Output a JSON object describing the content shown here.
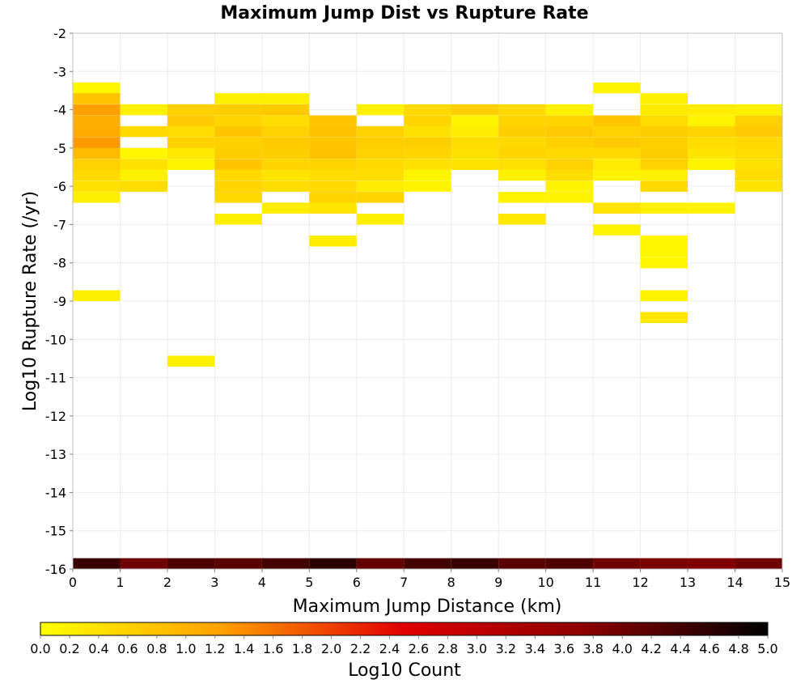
{
  "chart_data": {
    "type": "heatmap",
    "title": "Maximum Jump Dist vs Rupture Rate",
    "xlabel": "Maximum Jump Distance (km)",
    "ylabel": "Log10 Rupture Rate (/yr)",
    "xlim": [
      0,
      15
    ],
    "ylim": [
      -16,
      -2
    ],
    "x_ticks": [
      "0",
      "1",
      "2",
      "3",
      "4",
      "5",
      "6",
      "7",
      "8",
      "9",
      "10",
      "11",
      "12",
      "13",
      "14",
      "15"
    ],
    "y_ticks": [
      "-2",
      "-3",
      "-4",
      "-5",
      "-6",
      "-7",
      "-8",
      "-9",
      "-10",
      "-11",
      "-12",
      "-13",
      "-14",
      "-15",
      "-16"
    ],
    "x_bin_width": 1,
    "y_bin_height": 0.286,
    "grid": true,
    "colorbar": {
      "label": "Log10 Count",
      "range": [
        0,
        5
      ],
      "ticks": [
        "0.0",
        "0.2",
        "0.4",
        "0.6",
        "0.8",
        "1.0",
        "1.2",
        "1.4",
        "1.6",
        "1.8",
        "2.0",
        "2.2",
        "2.4",
        "2.6",
        "2.8",
        "3.0",
        "3.2",
        "3.4",
        "3.6",
        "3.8",
        "4.0",
        "4.2",
        "4.4",
        "4.6",
        "4.8",
        "5.0"
      ],
      "colors": [
        "#ffff00",
        "#ff8c00",
        "#e00000",
        "#8b0000",
        "#000000"
      ]
    },
    "cells": [
      {
        "x": 0.5,
        "y": -3.43,
        "v": 0.1
      },
      {
        "x": 0.5,
        "y": -3.71,
        "v": 0.75
      },
      {
        "x": 0.5,
        "y": -4.0,
        "v": 1.25
      },
      {
        "x": 0.5,
        "y": -4.29,
        "v": 1.05
      },
      {
        "x": 0.5,
        "y": -4.57,
        "v": 1.1
      },
      {
        "x": 0.5,
        "y": -4.86,
        "v": 1.3
      },
      {
        "x": 0.5,
        "y": -5.14,
        "v": 0.9
      },
      {
        "x": 0.5,
        "y": -5.43,
        "v": 0.6
      },
      {
        "x": 0.5,
        "y": -5.71,
        "v": 0.5
      },
      {
        "x": 0.5,
        "y": -6.0,
        "v": 0.4
      },
      {
        "x": 0.5,
        "y": -6.29,
        "v": 0.2
      },
      {
        "x": 0.5,
        "y": -8.86,
        "v": 0.2
      },
      {
        "x": 1.5,
        "y": -4.0,
        "v": 0.2
      },
      {
        "x": 1.5,
        "y": -4.57,
        "v": 0.5
      },
      {
        "x": 1.5,
        "y": -5.14,
        "v": 0.1
      },
      {
        "x": 1.5,
        "y": -5.43,
        "v": 0.4
      },
      {
        "x": 1.5,
        "y": -5.71,
        "v": 0.2
      },
      {
        "x": 1.5,
        "y": -6.0,
        "v": 0.45
      },
      {
        "x": 2.5,
        "y": -4.0,
        "v": 0.6
      },
      {
        "x": 2.5,
        "y": -4.29,
        "v": 0.7
      },
      {
        "x": 2.5,
        "y": -4.57,
        "v": 0.45
      },
      {
        "x": 2.5,
        "y": -4.86,
        "v": 0.6
      },
      {
        "x": 2.5,
        "y": -5.14,
        "v": 0.3
      },
      {
        "x": 2.5,
        "y": -5.43,
        "v": 0.15
      },
      {
        "x": 2.5,
        "y": -10.57,
        "v": 0.2
      },
      {
        "x": 3.5,
        "y": -3.71,
        "v": 0.2
      },
      {
        "x": 3.5,
        "y": -4.0,
        "v": 0.65
      },
      {
        "x": 3.5,
        "y": -4.29,
        "v": 0.55
      },
      {
        "x": 3.5,
        "y": -4.57,
        "v": 0.75
      },
      {
        "x": 3.5,
        "y": -4.86,
        "v": 0.6
      },
      {
        "x": 3.5,
        "y": -5.14,
        "v": 0.65
      },
      {
        "x": 3.5,
        "y": -5.43,
        "v": 0.75
      },
      {
        "x": 3.5,
        "y": -5.71,
        "v": 0.5
      },
      {
        "x": 3.5,
        "y": -6.0,
        "v": 0.55
      },
      {
        "x": 3.5,
        "y": -6.29,
        "v": 0.5
      },
      {
        "x": 3.5,
        "y": -6.86,
        "v": 0.2
      },
      {
        "x": 4.5,
        "y": -3.71,
        "v": 0.2
      },
      {
        "x": 4.5,
        "y": -4.0,
        "v": 0.7
      },
      {
        "x": 4.5,
        "y": -4.29,
        "v": 0.45
      },
      {
        "x": 4.5,
        "y": -4.57,
        "v": 0.6
      },
      {
        "x": 4.5,
        "y": -4.86,
        "v": 0.7
      },
      {
        "x": 4.5,
        "y": -5.14,
        "v": 0.65
      },
      {
        "x": 4.5,
        "y": -5.43,
        "v": 0.55
      },
      {
        "x": 4.5,
        "y": -5.71,
        "v": 0.35
      },
      {
        "x": 4.5,
        "y": -6.0,
        "v": 0.45
      },
      {
        "x": 4.5,
        "y": -6.57,
        "v": 0.25
      },
      {
        "x": 5.5,
        "y": -4.29,
        "v": 0.75
      },
      {
        "x": 5.5,
        "y": -4.57,
        "v": 0.8
      },
      {
        "x": 5.5,
        "y": -4.86,
        "v": 0.75
      },
      {
        "x": 5.5,
        "y": -5.14,
        "v": 0.8
      },
      {
        "x": 5.5,
        "y": -5.43,
        "v": 0.55
      },
      {
        "x": 5.5,
        "y": -5.71,
        "v": 0.45
      },
      {
        "x": 5.5,
        "y": -6.0,
        "v": 0.5
      },
      {
        "x": 5.5,
        "y": -6.29,
        "v": 0.55
      },
      {
        "x": 5.5,
        "y": -6.57,
        "v": 0.35
      },
      {
        "x": 5.5,
        "y": -7.43,
        "v": 0.25
      },
      {
        "x": 6.5,
        "y": -4.0,
        "v": 0.2
      },
      {
        "x": 6.5,
        "y": -4.57,
        "v": 0.6
      },
      {
        "x": 6.5,
        "y": -4.86,
        "v": 0.65
      },
      {
        "x": 6.5,
        "y": -5.14,
        "v": 0.6
      },
      {
        "x": 6.5,
        "y": -5.43,
        "v": 0.5
      },
      {
        "x": 6.5,
        "y": -5.71,
        "v": 0.45
      },
      {
        "x": 6.5,
        "y": -6.0,
        "v": 0.25
      },
      {
        "x": 6.5,
        "y": -6.29,
        "v": 0.55
      },
      {
        "x": 6.5,
        "y": -6.86,
        "v": 0.2
      },
      {
        "x": 7.5,
        "y": -4.0,
        "v": 0.5
      },
      {
        "x": 7.5,
        "y": -4.29,
        "v": 0.55
      },
      {
        "x": 7.5,
        "y": -4.57,
        "v": 0.4
      },
      {
        "x": 7.5,
        "y": -4.86,
        "v": 0.65
      },
      {
        "x": 7.5,
        "y": -5.14,
        "v": 0.55
      },
      {
        "x": 7.5,
        "y": -5.43,
        "v": 0.4
      },
      {
        "x": 7.5,
        "y": -5.71,
        "v": 0.15
      },
      {
        "x": 7.5,
        "y": -6.0,
        "v": 0.15
      },
      {
        "x": 8.5,
        "y": -4.0,
        "v": 0.65
      },
      {
        "x": 8.5,
        "y": -4.29,
        "v": 0.15
      },
      {
        "x": 8.5,
        "y": -4.57,
        "v": 0.25
      },
      {
        "x": 8.5,
        "y": -4.86,
        "v": 0.45
      },
      {
        "x": 8.5,
        "y": -5.14,
        "v": 0.4
      },
      {
        "x": 8.5,
        "y": -5.43,
        "v": 0.35
      },
      {
        "x": 9.5,
        "y": -4.0,
        "v": 0.5
      },
      {
        "x": 9.5,
        "y": -4.29,
        "v": 0.55
      },
      {
        "x": 9.5,
        "y": -4.57,
        "v": 0.65
      },
      {
        "x": 9.5,
        "y": -4.86,
        "v": 0.5
      },
      {
        "x": 9.5,
        "y": -5.14,
        "v": 0.55
      },
      {
        "x": 9.5,
        "y": -5.43,
        "v": 0.4
      },
      {
        "x": 9.5,
        "y": -5.71,
        "v": 0.2
      },
      {
        "x": 9.5,
        "y": -6.29,
        "v": 0.15
      },
      {
        "x": 9.5,
        "y": -6.86,
        "v": 0.3
      },
      {
        "x": 10.5,
        "y": -4.0,
        "v": 0.2
      },
      {
        "x": 10.5,
        "y": -4.29,
        "v": 0.55
      },
      {
        "x": 10.5,
        "y": -4.57,
        "v": 0.7
      },
      {
        "x": 10.5,
        "y": -4.86,
        "v": 0.6
      },
      {
        "x": 10.5,
        "y": -5.14,
        "v": 0.5
      },
      {
        "x": 10.5,
        "y": -5.43,
        "v": 0.6
      },
      {
        "x": 10.5,
        "y": -5.71,
        "v": 0.45
      },
      {
        "x": 10.5,
        "y": -6.0,
        "v": 0.15
      },
      {
        "x": 10.5,
        "y": -6.29,
        "v": 0.15
      },
      {
        "x": 11.5,
        "y": -3.43,
        "v": 0.15
      },
      {
        "x": 11.5,
        "y": -4.29,
        "v": 0.75
      },
      {
        "x": 11.5,
        "y": -4.57,
        "v": 0.6
      },
      {
        "x": 11.5,
        "y": -4.86,
        "v": 0.7
      },
      {
        "x": 11.5,
        "y": -5.14,
        "v": 0.5
      },
      {
        "x": 11.5,
        "y": -5.43,
        "v": 0.25
      },
      {
        "x": 11.5,
        "y": -5.71,
        "v": 0.15
      },
      {
        "x": 11.5,
        "y": -6.57,
        "v": 0.35
      },
      {
        "x": 11.5,
        "y": -7.14,
        "v": 0.15
      },
      {
        "x": 12.5,
        "y": -3.71,
        "v": 0.2
      },
      {
        "x": 12.5,
        "y": -4.0,
        "v": 0.25
      },
      {
        "x": 12.5,
        "y": -4.29,
        "v": 0.45
      },
      {
        "x": 12.5,
        "y": -4.57,
        "v": 0.65
      },
      {
        "x": 12.5,
        "y": -4.86,
        "v": 0.6
      },
      {
        "x": 12.5,
        "y": -5.14,
        "v": 0.65
      },
      {
        "x": 12.5,
        "y": -5.43,
        "v": 0.6
      },
      {
        "x": 12.5,
        "y": -5.71,
        "v": 0.2
      },
      {
        "x": 12.5,
        "y": -6.0,
        "v": 0.5
      },
      {
        "x": 12.5,
        "y": -6.57,
        "v": 0.2
      },
      {
        "x": 12.5,
        "y": -7.43,
        "v": 0.1
      },
      {
        "x": 12.5,
        "y": -7.71,
        "v": 0.1
      },
      {
        "x": 12.5,
        "y": -8.0,
        "v": 0.1
      },
      {
        "x": 12.5,
        "y": -8.86,
        "v": 0.15
      },
      {
        "x": 12.5,
        "y": -9.43,
        "v": 0.3
      },
      {
        "x": 13.5,
        "y": -4.0,
        "v": 0.25
      },
      {
        "x": 13.5,
        "y": -4.29,
        "v": 0.15
      },
      {
        "x": 13.5,
        "y": -4.57,
        "v": 0.55
      },
      {
        "x": 13.5,
        "y": -4.86,
        "v": 0.45
      },
      {
        "x": 13.5,
        "y": -5.14,
        "v": 0.35
      },
      {
        "x": 13.5,
        "y": -5.43,
        "v": 0.15
      },
      {
        "x": 13.5,
        "y": -6.57,
        "v": 0.15
      },
      {
        "x": 14.5,
        "y": -4.0,
        "v": 0.2
      },
      {
        "x": 14.5,
        "y": -4.29,
        "v": 0.6
      },
      {
        "x": 14.5,
        "y": -4.57,
        "v": 0.7
      },
      {
        "x": 14.5,
        "y": -4.86,
        "v": 0.5
      },
      {
        "x": 14.5,
        "y": -5.14,
        "v": 0.45
      },
      {
        "x": 14.5,
        "y": -5.43,
        "v": 0.4
      },
      {
        "x": 14.5,
        "y": -5.71,
        "v": 0.45
      },
      {
        "x": 14.5,
        "y": -6.0,
        "v": 0.35
      },
      {
        "x": 0.5,
        "y": -15.86,
        "v": 4.5
      },
      {
        "x": 1.5,
        "y": -15.86,
        "v": 4.0
      },
      {
        "x": 2.5,
        "y": -15.86,
        "v": 4.3
      },
      {
        "x": 3.5,
        "y": -15.86,
        "v": 4.2
      },
      {
        "x": 4.5,
        "y": -15.86,
        "v": 4.4
      },
      {
        "x": 5.5,
        "y": -15.86,
        "v": 4.6
      },
      {
        "x": 6.5,
        "y": -15.86,
        "v": 4.1
      },
      {
        "x": 7.5,
        "y": -15.86,
        "v": 4.4
      },
      {
        "x": 8.5,
        "y": -15.86,
        "v": 4.5
      },
      {
        "x": 9.5,
        "y": -15.86,
        "v": 4.2
      },
      {
        "x": 10.5,
        "y": -15.86,
        "v": 4.3
      },
      {
        "x": 11.5,
        "y": -15.86,
        "v": 4.0
      },
      {
        "x": 12.5,
        "y": -15.86,
        "v": 3.9
      },
      {
        "x": 13.5,
        "y": -15.86,
        "v": 3.85
      },
      {
        "x": 14.5,
        "y": -15.86,
        "v": 4.0
      }
    ]
  }
}
